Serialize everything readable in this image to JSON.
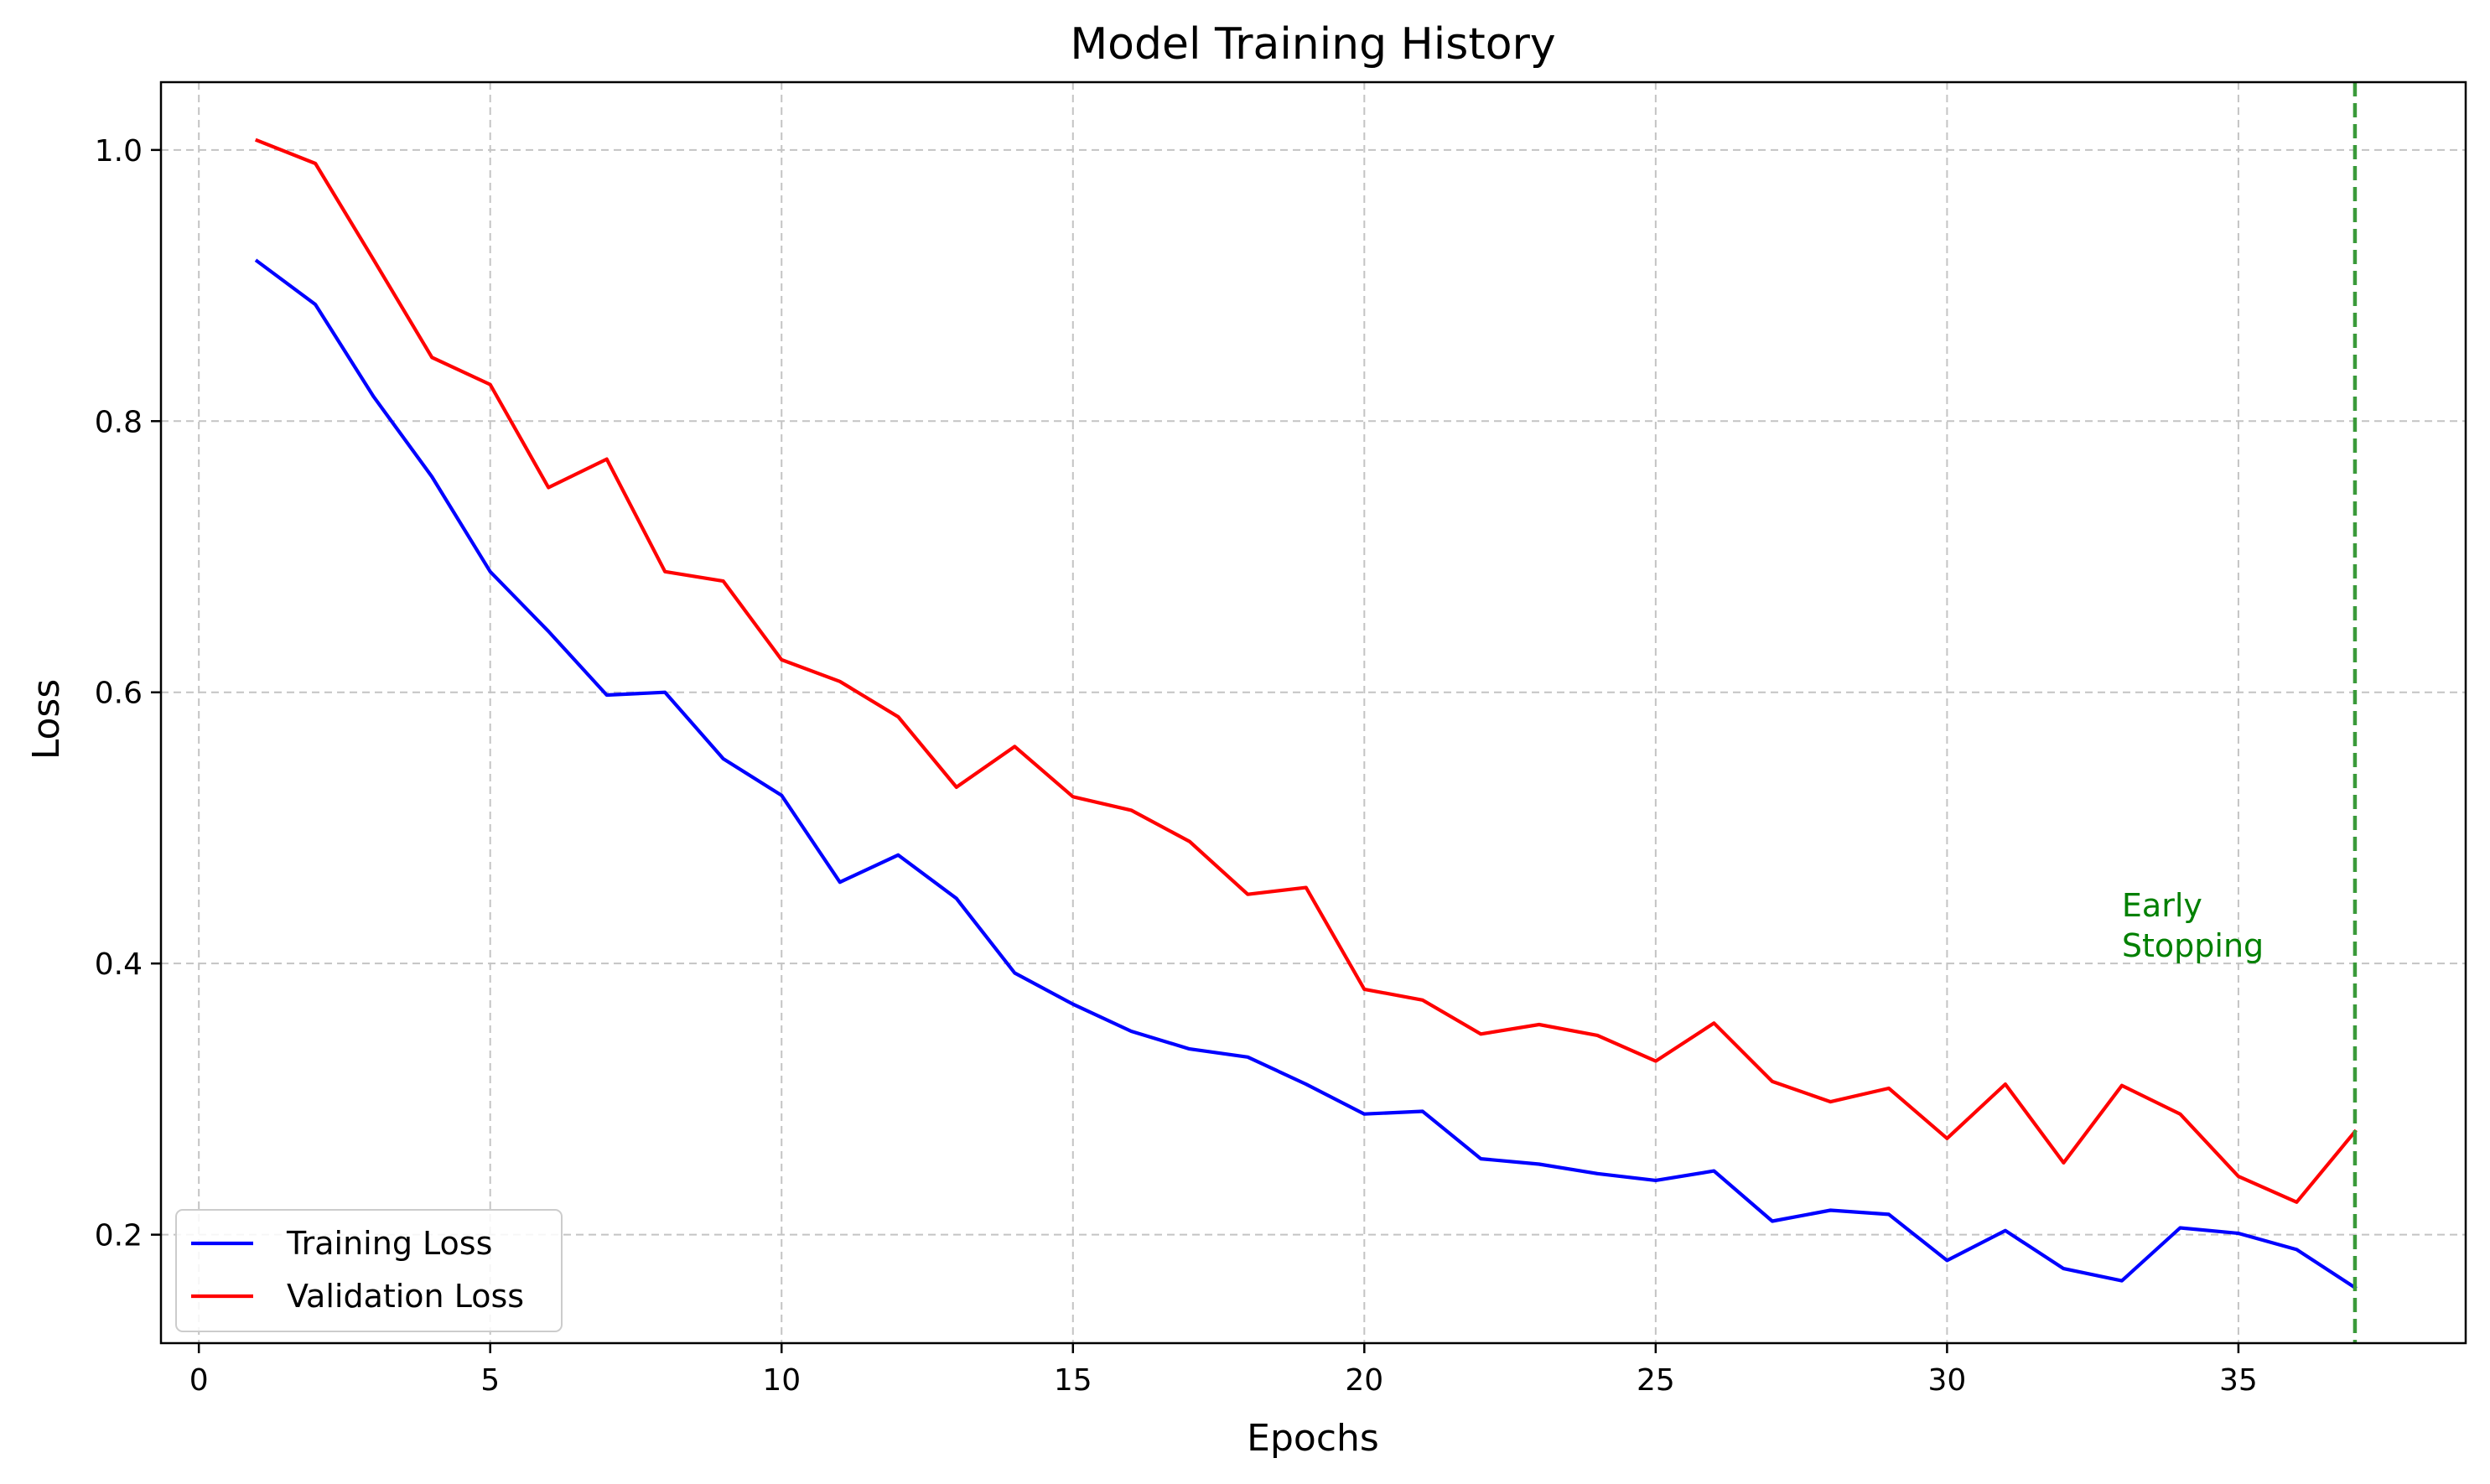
{
  "chart_data": {
    "type": "line",
    "title": "Model Training History",
    "xlabel": "Epochs",
    "ylabel": "Loss",
    "xlim": [
      -0.65,
      38.9
    ],
    "ylim": [
      0.12,
      1.05
    ],
    "xticks": [
      0,
      5,
      10,
      15,
      20,
      25,
      30,
      35
    ],
    "xtick_labels": [
      "0",
      "5",
      "10",
      "15",
      "20",
      "25",
      "30",
      "35"
    ],
    "yticks": [
      0.2,
      0.4,
      0.6,
      0.8,
      1.0
    ],
    "ytick_labels": [
      "0.2",
      "0.4",
      "0.6",
      "0.8",
      "1.0"
    ],
    "grid": true,
    "legend_position": "lower-left",
    "x": [
      1,
      2,
      3,
      4,
      5,
      6,
      7,
      8,
      9,
      10,
      11,
      12,
      13,
      14,
      15,
      16,
      17,
      18,
      19,
      20,
      21,
      22,
      23,
      24,
      25,
      26,
      27,
      28,
      29,
      30,
      31,
      32,
      33,
      34,
      35,
      36,
      37
    ],
    "series": [
      {
        "name": "Training Loss",
        "color": "#0000ff",
        "values": [
          0.918,
          0.886,
          0.818,
          0.759,
          0.689,
          0.645,
          0.598,
          0.6,
          0.551,
          0.524,
          0.46,
          0.48,
          0.448,
          0.393,
          0.37,
          0.35,
          0.337,
          0.331,
          0.311,
          0.289,
          0.291,
          0.256,
          0.252,
          0.245,
          0.24,
          0.247,
          0.21,
          0.218,
          0.215,
          0.181,
          0.203,
          0.175,
          0.166,
          0.205,
          0.201,
          0.189,
          0.161
        ]
      },
      {
        "name": "Validation Loss",
        "color": "#ff0000",
        "values": [
          1.007,
          0.99,
          0.919,
          0.847,
          0.827,
          0.751,
          0.772,
          0.689,
          0.682,
          0.624,
          0.608,
          0.582,
          0.53,
          0.56,
          0.523,
          0.513,
          0.49,
          0.451,
          0.456,
          0.381,
          0.373,
          0.348,
          0.355,
          0.347,
          0.328,
          0.356,
          0.313,
          0.298,
          0.308,
          0.271,
          0.311,
          0.253,
          0.31,
          0.289,
          0.243,
          0.224,
          0.276
        ]
      }
    ],
    "annotations": [
      {
        "type": "vline",
        "x": 37,
        "color": "#3a9a3a",
        "style": "dashed"
      },
      {
        "type": "text",
        "x": 33,
        "y": 0.405,
        "lines": [
          "Early",
          "Stopping"
        ],
        "color": "#008000"
      }
    ]
  }
}
